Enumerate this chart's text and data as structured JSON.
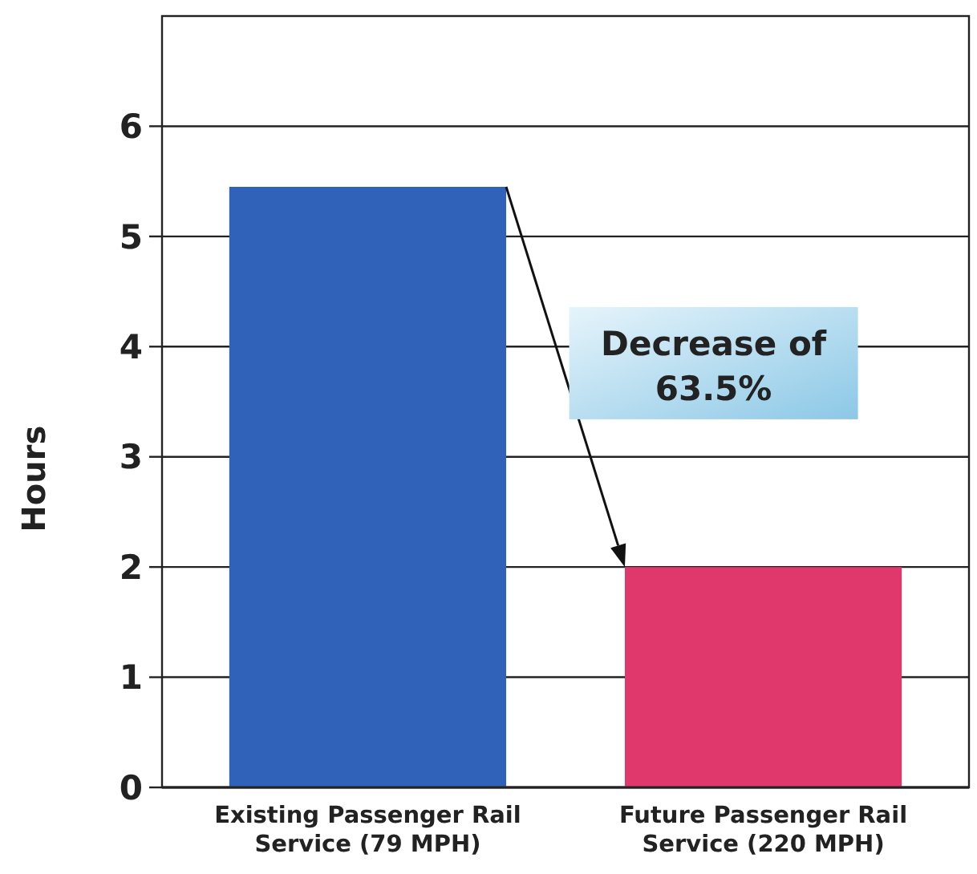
{
  "chart_data": {
    "type": "bar",
    "ylabel": "Hours",
    "categories": [
      "Existing Passenger Rail Service (79 MPH)",
      "Future Passenger Rail Service (220 MPH)"
    ],
    "values": [
      5.45,
      2
    ],
    "colors": [
      "#2f62b8",
      "#e0376c"
    ],
    "ylim": [
      0,
      7
    ],
    "yticks": [
      0,
      1,
      2,
      3,
      4,
      5,
      6
    ],
    "grid": "y",
    "annotations": [
      "Decrease of 63.5%"
    ]
  }
}
